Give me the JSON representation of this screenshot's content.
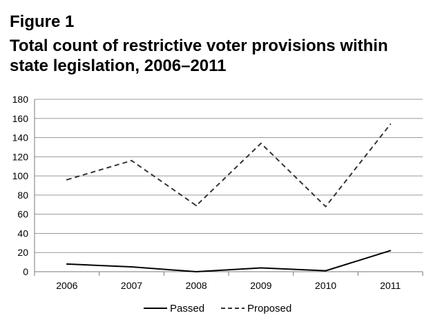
{
  "figure_label": "Figure 1",
  "chart_data": {
    "type": "line",
    "title": "Total count of restrictive voter provisions within state legislation, 2006–2011",
    "categories": [
      "2006",
      "2007",
      "2008",
      "2009",
      "2010",
      "2011"
    ],
    "series": [
      {
        "name": "Passed",
        "values": [
          8,
          5,
          0,
          4,
          1,
          22
        ],
        "style": "solid",
        "color": "#000000"
      },
      {
        "name": "Proposed",
        "values": [
          96,
          116,
          69,
          134,
          68,
          154
        ],
        "style": "dashed",
        "color": "#333333"
      }
    ],
    "ylim": [
      0,
      180
    ],
    "yticks": [
      0,
      20,
      40,
      60,
      80,
      100,
      120,
      140,
      160,
      180
    ],
    "xlabel": "",
    "ylabel": "",
    "grid": true,
    "legend": "bottom-center"
  }
}
